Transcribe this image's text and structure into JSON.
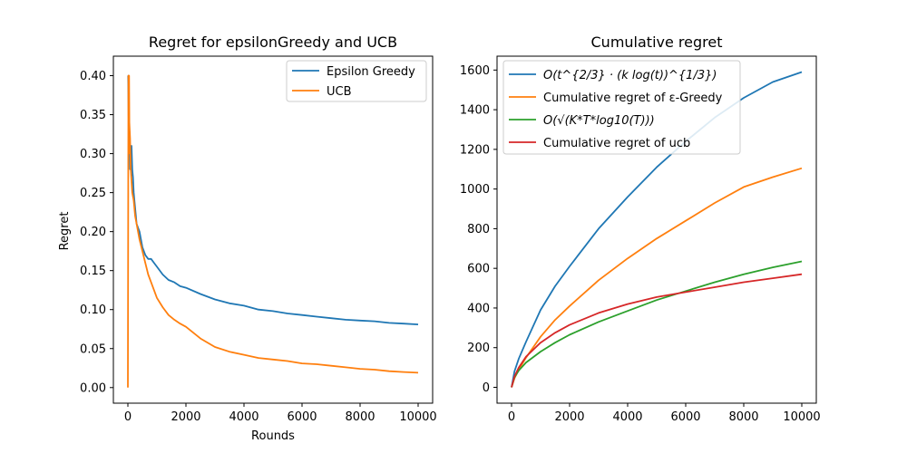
{
  "colors": {
    "blue": "#1f77b4",
    "orange": "#ff7f0e",
    "green": "#2ca02c",
    "red": "#d62728"
  },
  "chart_data": [
    {
      "type": "line",
      "title": "Regret for epsilonGreedy and UCB",
      "xlabel": "Rounds",
      "ylabel": "Regret",
      "xlim": [
        -500,
        10500
      ],
      "ylim": [
        -0.02,
        0.425
      ],
      "xticks": [
        0,
        2000,
        4000,
        6000,
        8000,
        10000
      ],
      "yticks": [
        0.0,
        0.05,
        0.1,
        0.15,
        0.2,
        0.25,
        0.3,
        0.35,
        0.4
      ],
      "ytick_labels": [
        "0.00",
        "0.05",
        "0.10",
        "0.15",
        "0.20",
        "0.25",
        "0.30",
        "0.35",
        "0.40"
      ],
      "legend": "top-right",
      "grid": false,
      "series": [
        {
          "name": "Epsilon Greedy",
          "color": "#1f77b4",
          "x": [
            0,
            10,
            25,
            50,
            75,
            100,
            125,
            150,
            175,
            200,
            250,
            300,
            400,
            500,
            600,
            700,
            800,
            900,
            1000,
            1200,
            1400,
            1600,
            1800,
            2000,
            2500,
            3000,
            3500,
            4000,
            4500,
            5000,
            5500,
            6000,
            6500,
            7000,
            7500,
            8000,
            8500,
            9000,
            9500,
            10000
          ],
          "y": [
            0.4,
            0.4,
            0.35,
            0.32,
            0.28,
            0.3,
            0.31,
            0.28,
            0.27,
            0.25,
            0.23,
            0.21,
            0.2,
            0.18,
            0.17,
            0.165,
            0.165,
            0.16,
            0.155,
            0.145,
            0.138,
            0.135,
            0.13,
            0.128,
            0.12,
            0.113,
            0.108,
            0.105,
            0.1,
            0.098,
            0.095,
            0.093,
            0.091,
            0.089,
            0.087,
            0.086,
            0.085,
            0.083,
            0.082,
            0.081
          ]
        },
        {
          "name": "UCB",
          "color": "#ff7f0e",
          "x": [
            0,
            10,
            20,
            30,
            40,
            50,
            75,
            100,
            150,
            200,
            250,
            300,
            400,
            500,
            600,
            700,
            800,
            1000,
            1200,
            1400,
            1600,
            1800,
            2000,
            2500,
            3000,
            3500,
            4000,
            4500,
            5000,
            5500,
            6000,
            6500,
            7000,
            7500,
            8000,
            8500,
            9000,
            9500,
            10000
          ],
          "y": [
            0.0,
            0.2,
            0.4,
            0.3,
            0.4,
            0.34,
            0.32,
            0.28,
            0.25,
            0.24,
            0.22,
            0.21,
            0.19,
            0.175,
            0.16,
            0.145,
            0.135,
            0.115,
            0.103,
            0.093,
            0.087,
            0.082,
            0.078,
            0.063,
            0.052,
            0.046,
            0.042,
            0.038,
            0.036,
            0.034,
            0.031,
            0.03,
            0.028,
            0.026,
            0.024,
            0.023,
            0.021,
            0.02,
            0.019
          ]
        }
      ]
    },
    {
      "type": "line",
      "title": "Cumulative regret",
      "xlabel": "",
      "ylabel": "",
      "xlim": [
        -500,
        10500
      ],
      "ylim": [
        -80,
        1670
      ],
      "xticks": [
        0,
        2000,
        4000,
        6000,
        8000,
        10000
      ],
      "yticks": [
        0,
        200,
        400,
        600,
        800,
        1000,
        1200,
        1400,
        1600
      ],
      "legend": "top-left",
      "grid": false,
      "series": [
        {
          "name": "O(t^{2/3} · (k log(t))^{1/3})",
          "color": "#1f77b4",
          "x": [
            0,
            100,
            250,
            500,
            1000,
            1500,
            2000,
            3000,
            4000,
            5000,
            6000,
            7000,
            8000,
            9000,
            10000
          ],
          "y": [
            0,
            80,
            145,
            230,
            390,
            510,
            610,
            800,
            960,
            1110,
            1240,
            1360,
            1460,
            1540,
            1590
          ]
        },
        {
          "name": "Cumulative regret of ε-Greedy",
          "color": "#ff7f0e",
          "x": [
            0,
            100,
            250,
            500,
            1000,
            1500,
            2000,
            3000,
            4000,
            5000,
            6000,
            7000,
            8000,
            9000,
            10000
          ],
          "y": [
            0,
            45,
            90,
            150,
            255,
            340,
            410,
            540,
            650,
            750,
            840,
            930,
            1010,
            1060,
            1105
          ]
        },
        {
          "name": "O(√(K*T*log10(T)))",
          "color": "#2ca02c",
          "x": [
            0,
            100,
            250,
            500,
            1000,
            1500,
            2000,
            3000,
            4000,
            5000,
            6000,
            7000,
            8000,
            9000,
            10000
          ],
          "y": [
            0,
            50,
            85,
            125,
            180,
            225,
            265,
            330,
            385,
            440,
            485,
            530,
            570,
            605,
            635
          ]
        },
        {
          "name": "Cumulative regret of ucb",
          "color": "#d62728",
          "x": [
            0,
            100,
            250,
            500,
            1000,
            1500,
            2000,
            3000,
            4000,
            5000,
            6000,
            7000,
            8000,
            9000,
            10000
          ],
          "y": [
            0,
            55,
            100,
            155,
            225,
            275,
            315,
            375,
            420,
            455,
            480,
            505,
            530,
            550,
            570
          ]
        }
      ]
    }
  ]
}
